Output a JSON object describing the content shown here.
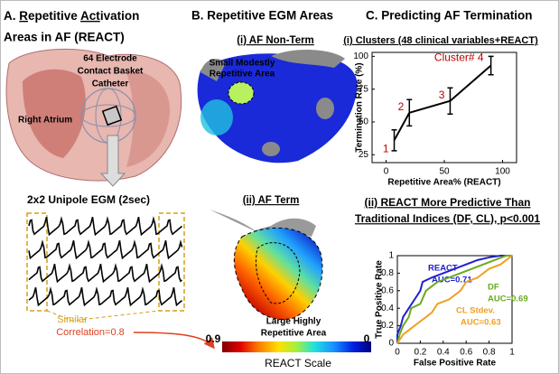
{
  "panel_a": {
    "title_line1": [
      "A. ",
      "R",
      "epetitive ",
      "Act",
      "ivation"
    ],
    "title_line2": "Areas in AF (REACT)",
    "catheter_label": [
      "64 Electrode",
      "Contact Basket",
      "Catheter"
    ],
    "atrium_label": "Right Atrium",
    "egm_label": "2x2 Unipole EGM (2sec)",
    "similar_label": "Similar",
    "correlation_label": "Correlation=0.8"
  },
  "panel_b": {
    "title": "B. Repetitive EGM Areas",
    "map1_title": "(i) AF Non-Term",
    "map1_note": [
      "Small Modestly",
      "Repetitive Area"
    ],
    "map2_title": "(ii) AF Term",
    "map2_note": [
      "Large Highly",
      "Repetitive Area"
    ],
    "scale": {
      "ticks": [
        0.9,
        0
      ],
      "label": "REACT Scale"
    }
  },
  "panel_c": {
    "title": "C. Predicting AF Termination"
  },
  "chart_data": [
    {
      "type": "line",
      "title": "(i) Clusters (48 clinical variables+REACT)",
      "x_label": "Repetitive Area% (REACT)",
      "y_label": "Termination Rate (%)",
      "x": [
        7,
        20,
        55,
        90
      ],
      "values": [
        36,
        57,
        66,
        93
      ],
      "errors": [
        8,
        10,
        10,
        7
      ],
      "point_labels": [
        "1",
        "2",
        "3",
        "Cluster# 4"
      ],
      "color": "#000000",
      "label_color": "#c00000",
      "xlim": [
        -12,
        112
      ],
      "ylim": [
        19,
        103
      ],
      "xticks": [
        0,
        50,
        100
      ],
      "yticks": [
        25,
        50,
        75,
        100
      ]
    },
    {
      "type": "line",
      "title": [
        "(ii) REACT More Predictive Than",
        "Traditional Indices (DF, CL), p<0.001"
      ],
      "x_label": "False Positive Rate",
      "y_label": "True Positive Rate",
      "xlim": [
        0,
        1
      ],
      "ylim": [
        0,
        1
      ],
      "xticks": [
        0,
        0.2,
        0.4,
        0.6,
        0.8,
        1
      ],
      "yticks": [
        0,
        0.2,
        0.4,
        0.6,
        0.8,
        1
      ],
      "series": [
        {
          "name": "REACT",
          "auc_label": "AUC=0.71",
          "color": "#2020d0",
          "x": [
            0,
            0,
            0.03,
            0.05,
            0.1,
            0.15,
            0.2,
            0.22,
            0.3,
            0.4,
            0.5,
            0.6,
            0.7,
            0.8,
            0.9,
            1
          ],
          "values": [
            0,
            0.1,
            0.2,
            0.3,
            0.4,
            0.5,
            0.6,
            0.7,
            0.75,
            0.8,
            0.85,
            0.9,
            0.95,
            0.98,
            1,
            1
          ]
        },
        {
          "name": "DF",
          "auc_label": "AUC=0.69",
          "color": "#6aaa20",
          "x": [
            0,
            0.02,
            0.05,
            0.1,
            0.12,
            0.2,
            0.25,
            0.35,
            0.45,
            0.55,
            0.65,
            0.75,
            0.85,
            0.95,
            1
          ],
          "values": [
            0,
            0.1,
            0.2,
            0.3,
            0.4,
            0.45,
            0.6,
            0.7,
            0.75,
            0.8,
            0.85,
            0.9,
            0.95,
            1,
            1
          ]
        },
        {
          "name": "CL Stdev.",
          "auc_label": "AUC=0.63",
          "color": "#f0a020",
          "x": [
            0,
            0.05,
            0.1,
            0.2,
            0.3,
            0.35,
            0.45,
            0.55,
            0.6,
            0.7,
            0.8,
            0.9,
            0.95,
            1
          ],
          "values": [
            0,
            0.1,
            0.15,
            0.25,
            0.35,
            0.45,
            0.5,
            0.6,
            0.7,
            0.75,
            0.85,
            0.9,
            0.95,
            1
          ]
        }
      ]
    }
  ]
}
